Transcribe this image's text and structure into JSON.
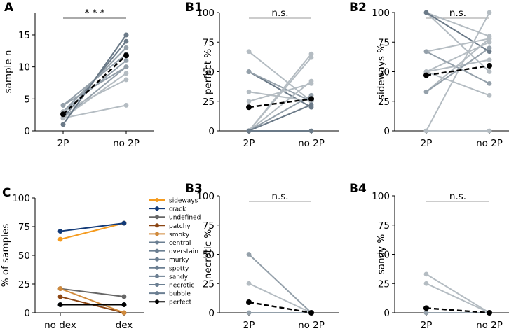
{
  "colors": {
    "axis": "#000000",
    "mean": "#000000",
    "line_light": "#b4bcc2",
    "line_mid": "#94a0aa",
    "line_dark": "#6b7a88",
    "bracket": "#555555",
    "nsline": "#999999"
  },
  "chart_data": [
    {
      "id": "A",
      "panel_label": "A",
      "type": "line",
      "ylabel": "sample n",
      "xlabel": "",
      "categories": [
        "2P",
        "no 2P"
      ],
      "ylim": [
        0,
        18.5
      ],
      "yticks": [
        0,
        5,
        10,
        15
      ],
      "significance": "* * *",
      "series": [
        {
          "values": [
            1,
            15
          ],
          "shade": "dark"
        },
        {
          "values": [
            2,
            14
          ],
          "shade": "dark"
        },
        {
          "values": [
            3,
            13
          ],
          "shade": "mid"
        },
        {
          "values": [
            4,
            12
          ],
          "shade": "mid"
        },
        {
          "values": [
            3,
            11
          ],
          "shade": "mid"
        },
        {
          "values": [
            2,
            10
          ],
          "shade": "mid"
        },
        {
          "values": [
            2,
            9
          ],
          "shade": "light"
        },
        {
          "values": [
            3,
            8
          ],
          "shade": "light"
        },
        {
          "values": [
            4,
            10
          ],
          "shade": "mid"
        },
        {
          "values": [
            2,
            4
          ],
          "shade": "light"
        },
        {
          "values": [
            1,
            15
          ],
          "shade": "dark"
        }
      ],
      "mean": [
        2.6,
        11.8
      ]
    },
    {
      "id": "B1",
      "panel_label": "B1",
      "type": "line",
      "ylabel": "perfect %",
      "xlabel": "",
      "categories": [
        "2P",
        "no 2P"
      ],
      "ylim": [
        0,
        100
      ],
      "yticks": [
        0,
        25,
        50,
        75,
        100
      ],
      "significance": "n.s.",
      "series": [
        {
          "values": [
            67,
            25
          ],
          "shade": "light"
        },
        {
          "values": [
            50,
            20
          ],
          "shade": "dark"
        },
        {
          "values": [
            50,
            25
          ],
          "shade": "mid"
        },
        {
          "values": [
            33,
            25
          ],
          "shade": "light"
        },
        {
          "values": [
            25,
            40
          ],
          "shade": "light"
        },
        {
          "values": [
            0,
            65
          ],
          "shade": "light"
        },
        {
          "values": [
            0,
            62
          ],
          "shade": "light"
        },
        {
          "values": [
            0,
            42
          ],
          "shade": "light"
        },
        {
          "values": [
            0,
            30
          ],
          "shade": "mid"
        },
        {
          "values": [
            0,
            22
          ],
          "shade": "dark"
        },
        {
          "values": [
            0,
            0
          ],
          "shade": "dark"
        }
      ],
      "mean": [
        20,
        27
      ]
    },
    {
      "id": "B2",
      "panel_label": "B2",
      "type": "line",
      "ylabel": "sideways %",
      "xlabel": "",
      "categories": [
        "2P",
        "no 2P"
      ],
      "ylim": [
        0,
        100
      ],
      "yticks": [
        0,
        25,
        50,
        75,
        100
      ],
      "significance": "n.s.",
      "series": [
        {
          "values": [
            100,
            80
          ],
          "shade": "light"
        },
        {
          "values": [
            100,
            50
          ],
          "shade": "light"
        },
        {
          "values": [
            100,
            67
          ],
          "shade": "dark"
        },
        {
          "values": [
            67,
            78
          ],
          "shade": "light"
        },
        {
          "values": [
            67,
            40
          ],
          "shade": "mid"
        },
        {
          "values": [
            50,
            75
          ],
          "shade": "light"
        },
        {
          "values": [
            50,
            60
          ],
          "shade": "light"
        },
        {
          "values": [
            50,
            30
          ],
          "shade": "light"
        },
        {
          "values": [
            33,
            78
          ],
          "shade": "light"
        },
        {
          "values": [
            33,
            70
          ],
          "shade": "mid"
        },
        {
          "values": [
            0,
            100
          ],
          "shade": "light"
        },
        {
          "values": [
            0,
            0
          ],
          "shade": "light"
        }
      ],
      "mean": [
        47,
        55
      ]
    },
    {
      "id": "C",
      "panel_label": "C",
      "type": "line",
      "ylabel": "% of samples",
      "xlabel": "",
      "categories": [
        "no dex",
        "dex"
      ],
      "ylim": [
        0,
        100
      ],
      "yticks": [
        0,
        25,
        50,
        75,
        100
      ],
      "series": [
        {
          "name": "sideways",
          "values": [
            64,
            78
          ],
          "color": "#f59b1e"
        },
        {
          "name": "crack",
          "values": [
            71,
            78
          ],
          "color": "#123a78"
        },
        {
          "name": "undefined",
          "values": [
            21,
            14
          ],
          "color": "#666666"
        },
        {
          "name": "patchy",
          "values": [
            14,
            0
          ],
          "color": "#8b4513"
        },
        {
          "name": "smoky",
          "values": [
            21,
            0
          ],
          "color": "#d08a3c"
        },
        {
          "name": "central",
          "values": [
            7,
            7
          ],
          "color": "#6b7f92"
        },
        {
          "name": "overstain",
          "values": [
            7,
            7
          ],
          "color": "#6b7f92"
        },
        {
          "name": "murky",
          "values": [
            7,
            7
          ],
          "color": "#6b7f92"
        },
        {
          "name": "spotty",
          "values": [
            7,
            7
          ],
          "color": "#6b7f92"
        },
        {
          "name": "sandy",
          "values": [
            7,
            7
          ],
          "color": "#6b7f92"
        },
        {
          "name": "necrotic",
          "values": [
            7,
            7
          ],
          "color": "#6b7f92"
        },
        {
          "name": "bubble",
          "values": [
            7,
            7
          ],
          "color": "#6b7f92"
        },
        {
          "name": "perfect",
          "values": [
            7,
            7
          ],
          "color": "#000000"
        }
      ],
      "legend": [
        "sideways",
        "crack",
        "undefined",
        "patchy",
        "smoky",
        "central",
        "overstain",
        "murky",
        "spotty",
        "sandy",
        "necrotic",
        "bubble",
        "perfect"
      ],
      "legend_position": "right"
    },
    {
      "id": "B3",
      "panel_label": "B3",
      "type": "line",
      "ylabel": "necrotic %",
      "xlabel": "",
      "categories": [
        "2P",
        "no 2P"
      ],
      "ylim": [
        0,
        100
      ],
      "yticks": [
        0,
        25,
        50,
        75,
        100
      ],
      "significance": "n.s.",
      "series": [
        {
          "values": [
            50,
            0
          ],
          "shade": "mid"
        },
        {
          "values": [
            25,
            0
          ],
          "shade": "light"
        },
        {
          "values": [
            0,
            0
          ],
          "shade": "mid"
        }
      ],
      "mean": [
        9,
        0
      ]
    },
    {
      "id": "B4",
      "panel_label": "B4",
      "type": "line",
      "ylabel": "sandy %",
      "xlabel": "",
      "categories": [
        "2P",
        "no 2P"
      ],
      "ylim": [
        0,
        100
      ],
      "yticks": [
        0,
        25,
        50,
        75,
        100
      ],
      "significance": "n.s.",
      "series": [
        {
          "values": [
            33,
            0
          ],
          "shade": "light"
        },
        {
          "values": [
            25,
            0
          ],
          "shade": "light"
        },
        {
          "values": [
            0,
            0
          ],
          "shade": "mid"
        }
      ],
      "mean": [
        4,
        0
      ]
    }
  ]
}
